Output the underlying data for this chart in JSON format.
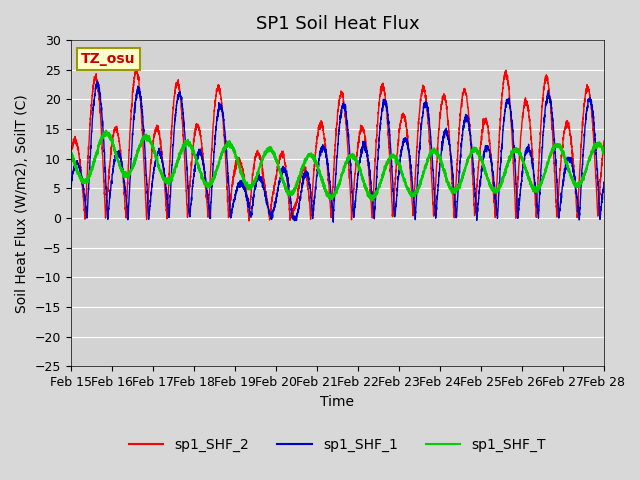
{
  "title": "SP1 Soil Heat Flux",
  "xlabel": "Time",
  "ylabel": "Soil Heat Flux (W/m2), SoilT (C)",
  "ylim": [
    -25,
    30
  ],
  "yticks": [
    -25,
    -20,
    -15,
    -10,
    -5,
    0,
    5,
    10,
    15,
    20,
    25,
    30
  ],
  "date_labels": [
    "Feb 15",
    "Feb 16",
    "Feb 17",
    "Feb 18",
    "Feb 19",
    "Feb 20",
    "Feb 21",
    "Feb 22",
    "Feb 23",
    "Feb 24",
    "Feb 25",
    "Feb 26",
    "Feb 27",
    "Feb 28"
  ],
  "tz_label": "TZ_osu",
  "line_colors": {
    "sp1_SHF_2": "#ff0000",
    "sp1_SHF_1": "#0000cc",
    "sp1_SHF_T": "#00cc00"
  },
  "legend_labels": [
    "sp1_SHF_2",
    "sp1_SHF_1",
    "sp1_SHF_T"
  ],
  "plot_bg_color": "#d3d3d3",
  "fig_bg_color": "#d8d8d8",
  "grid_color": "#ffffff",
  "title_fontsize": 13,
  "axis_label_fontsize": 10,
  "tick_fontsize": 9,
  "num_days": 13,
  "points_per_day": 288
}
